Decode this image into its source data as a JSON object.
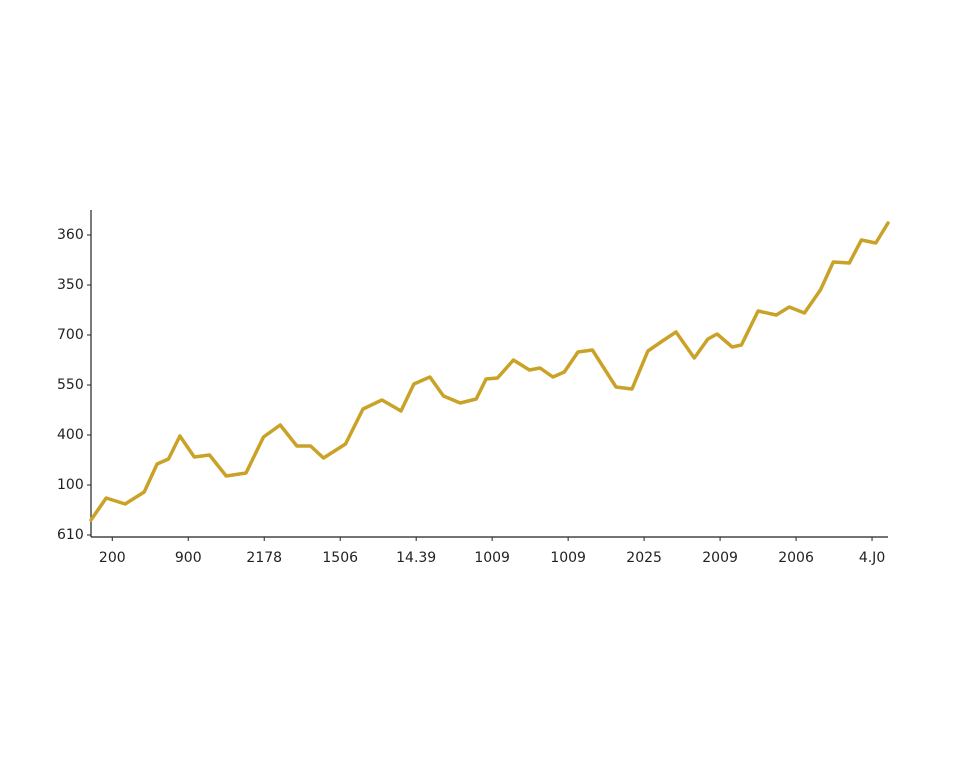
{
  "chart_data": {
    "type": "line",
    "color": "#c9a227",
    "x": [
      -0.28,
      -0.08,
      0.17,
      0.42,
      0.59,
      0.74,
      0.89,
      1.08,
      1.28,
      1.5,
      1.76,
      1.99,
      2.21,
      2.43,
      2.61,
      2.78,
      3.07,
      3.3,
      3.55,
      3.8,
      3.97,
      4.18,
      4.36,
      4.58,
      4.79,
      4.92,
      5.07,
      5.28,
      5.49,
      5.63,
      5.8,
      5.95,
      6.13,
      6.32,
      6.63,
      6.84,
      7.05,
      7.26,
      7.42,
      7.66,
      7.84,
      7.96,
      8.16,
      8.28,
      8.5,
      8.74,
      8.91,
      9.11,
      9.32,
      9.49,
      9.7,
      9.86,
      10.05,
      10.21
    ],
    "values": [
      0.3,
      0.74,
      0.62,
      0.86,
      1.42,
      1.52,
      1.98,
      1.56,
      1.6,
      1.18,
      1.24,
      1.96,
      2.2,
      1.78,
      1.78,
      1.54,
      1.82,
      2.52,
      2.7,
      2.48,
      3.02,
      3.16,
      2.78,
      2.64,
      2.72,
      3.12,
      3.14,
      3.5,
      3.3,
      3.34,
      3.16,
      3.26,
      3.66,
      3.7,
      2.96,
      2.92,
      3.68,
      3.9,
      4.06,
      3.54,
      3.92,
      4.02,
      3.76,
      3.8,
      4.48,
      4.4,
      4.56,
      4.44,
      4.9,
      5.46,
      5.44,
      5.9,
      5.84,
      6.24
    ],
    "xlim": [
      -0.28,
      10.21
    ],
    "ylim": [
      0,
      6.5
    ],
    "xticks": [
      {
        "value": 0,
        "label": "200"
      },
      {
        "value": 1,
        "label": "900"
      },
      {
        "value": 2,
        "label": "2178"
      },
      {
        "value": 3,
        "label": "1506"
      },
      {
        "value": 4,
        "label": "14.39"
      },
      {
        "value": 5,
        "label": "1009"
      },
      {
        "value": 6,
        "label": "1009"
      },
      {
        "value": 7,
        "label": "2025"
      },
      {
        "value": 8,
        "label": "2009"
      },
      {
        "value": 9,
        "label": "2006"
      },
      {
        "value": 10,
        "label": "4.J0"
      }
    ],
    "yticks": [
      {
        "value": 0,
        "label": "610"
      },
      {
        "value": 1,
        "label": "100"
      },
      {
        "value": 2,
        "label": "400"
      },
      {
        "value": 3,
        "label": "550"
      },
      {
        "value": 4,
        "label": "700"
      },
      {
        "value": 5,
        "label": "350"
      },
      {
        "value": 6,
        "label": "360"
      }
    ]
  }
}
